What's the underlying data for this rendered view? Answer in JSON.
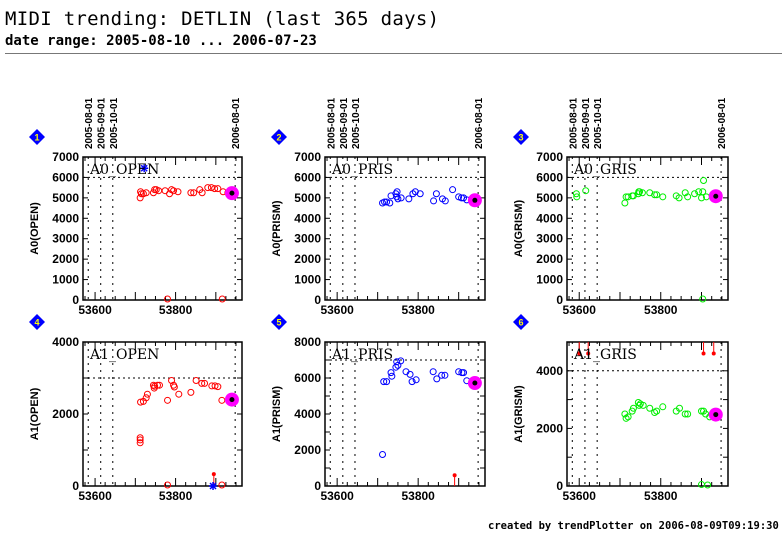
{
  "header": {
    "title": "MIDI trending: DETLIN (last 365 days)",
    "subtitle": "date range: 2005-08-10 ... 2006-07-23"
  },
  "footer": "created by trendPlotter on 2006-08-09T09:19:30",
  "date_markers": [
    {
      "label": "2005-08-01",
      "mjd": 53583
    },
    {
      "label": "2005-09-01",
      "mjd": 53614
    },
    {
      "label": "2005-10-01",
      "mjd": 53644
    },
    {
      "label": "2006-08-01",
      "mjd": 53948
    }
  ],
  "colors": {
    "OPEN": "#ff0000",
    "PRISM": "#0000ff",
    "GRISM": "#00ee00",
    "highlight": "#ff00ff",
    "badge": "#0000ff"
  },
  "chart_data": [
    {
      "type": "scatter",
      "id": 1,
      "badge": "1",
      "panel_title": "A0_OPEN",
      "ylabel": "A0(OPEN)",
      "xlim": [
        53570,
        53965
      ],
      "ylim": [
        0,
        7000
      ],
      "xticks": [
        53600,
        53800
      ],
      "yticks": [
        0,
        1000,
        2000,
        3000,
        4000,
        5000,
        6000,
        7000
      ],
      "threshold": 6000,
      "color": "OPEN",
      "points": [
        [
          53712,
          5000
        ],
        [
          53713,
          5300
        ],
        [
          53715,
          5200
        ],
        [
          53720,
          5200
        ],
        [
          53727,
          5250
        ],
        [
          53745,
          5250
        ],
        [
          53748,
          5400
        ],
        [
          53752,
          5400
        ],
        [
          53758,
          5350
        ],
        [
          53774,
          5350
        ],
        [
          53785,
          5200
        ],
        [
          53790,
          5400
        ],
        [
          53795,
          5350
        ],
        [
          53806,
          5300
        ],
        [
          53838,
          5250
        ],
        [
          53845,
          5250
        ],
        [
          53860,
          5400
        ],
        [
          53866,
          5250
        ],
        [
          53880,
          5500
        ],
        [
          53889,
          5500
        ],
        [
          53897,
          5450
        ],
        [
          53905,
          5450
        ],
        [
          53918,
          5300
        ],
        [
          53930,
          5250
        ],
        [
          53780,
          0
        ],
        [
          53916,
          0
        ]
      ],
      "latest": [
        53940,
        5230
      ],
      "extra": [
        {
          "type": "star",
          "x": 53722,
          "y": 6450,
          "color": "#0000ff"
        }
      ]
    },
    {
      "type": "scatter",
      "id": 2,
      "badge": "2",
      "panel_title": "A0_PRIS",
      "ylabel": "A0(PRISM)",
      "xlim": [
        53570,
        53965
      ],
      "ylim": [
        0,
        7000
      ],
      "xticks": [
        53600,
        53800
      ],
      "yticks": [
        0,
        1000,
        2000,
        3000,
        4000,
        5000,
        6000,
        7000
      ],
      "threshold": 6000,
      "color": "PRISM",
      "points": [
        [
          53712,
          4750
        ],
        [
          53717,
          4800
        ],
        [
          53722,
          4800
        ],
        [
          53730,
          4750
        ],
        [
          53733,
          5100
        ],
        [
          53745,
          5200
        ],
        [
          53747,
          5050
        ],
        [
          53748,
          5300
        ],
        [
          53750,
          4950
        ],
        [
          53758,
          5000
        ],
        [
          53777,
          4950
        ],
        [
          53787,
          5200
        ],
        [
          53793,
          5300
        ],
        [
          53805,
          5200
        ],
        [
          53838,
          4850
        ],
        [
          53845,
          5200
        ],
        [
          53860,
          4950
        ],
        [
          53867,
          4850
        ],
        [
          53885,
          5400
        ],
        [
          53900,
          5050
        ],
        [
          53907,
          5000
        ],
        [
          53912,
          5000
        ],
        [
          53920,
          4900
        ]
      ],
      "latest": [
        53940,
        4880
      ],
      "extra": []
    },
    {
      "type": "scatter",
      "id": 3,
      "badge": "3",
      "panel_title": "A0_GRIS",
      "ylabel": "A0(GRISM)",
      "xlim": [
        53570,
        53965
      ],
      "ylim": [
        0,
        7000
      ],
      "xticks": [
        53600,
        53800
      ],
      "yticks": [
        0,
        1000,
        2000,
        3000,
        4000,
        5000,
        6000,
        7000
      ],
      "threshold": 6000,
      "color": "GRISM",
      "points": [
        [
          53593,
          5200
        ],
        [
          53594,
          5050
        ],
        [
          53616,
          5350
        ],
        [
          53712,
          4750
        ],
        [
          53715,
          5050
        ],
        [
          53720,
          5050
        ],
        [
          53730,
          5100
        ],
        [
          53733,
          5100
        ],
        [
          53745,
          5200
        ],
        [
          53746,
          5300
        ],
        [
          53748,
          5300
        ],
        [
          53755,
          5250
        ],
        [
          53773,
          5250
        ],
        [
          53785,
          5150
        ],
        [
          53790,
          5150
        ],
        [
          53805,
          5050
        ],
        [
          53838,
          5100
        ],
        [
          53845,
          5000
        ],
        [
          53860,
          5250
        ],
        [
          53866,
          5050
        ],
        [
          53883,
          5200
        ],
        [
          53893,
          5300
        ],
        [
          53900,
          5000
        ],
        [
          53903,
          5300
        ],
        [
          53905,
          5850
        ],
        [
          53912,
          5050
        ],
        [
          53903,
          0
        ]
      ],
      "latest": [
        53935,
        5080
      ],
      "extra": []
    },
    {
      "type": "scatter",
      "id": 4,
      "badge": "4",
      "panel_title": "A1_OPEN",
      "ylabel": "A1(OPEN)",
      "xlim": [
        53570,
        53965
      ],
      "ylim": [
        0,
        4000
      ],
      "xticks": [
        53600,
        53800
      ],
      "yticks": [
        0,
        1000,
        2000,
        3000,
        4000
      ],
      "ytick_labels": [
        0,
        2000,
        4000
      ],
      "threshold": 3000,
      "color": "OPEN",
      "points": [
        [
          53712,
          1200
        ],
        [
          53712,
          1280
        ],
        [
          53712,
          1340
        ],
        [
          53713,
          2330
        ],
        [
          53720,
          2350
        ],
        [
          53727,
          2450
        ],
        [
          53730,
          2550
        ],
        [
          53745,
          2800
        ],
        [
          53747,
          2720
        ],
        [
          53748,
          2770
        ],
        [
          53755,
          2800
        ],
        [
          53760,
          2800
        ],
        [
          53780,
          2380
        ],
        [
          53790,
          2930
        ],
        [
          53795,
          2800
        ],
        [
          53797,
          2750
        ],
        [
          53808,
          2550
        ],
        [
          53838,
          2600
        ],
        [
          53851,
          2930
        ],
        [
          53865,
          2850
        ],
        [
          53872,
          2850
        ],
        [
          53890,
          2780
        ],
        [
          53898,
          2780
        ],
        [
          53905,
          2760
        ],
        [
          53915,
          2380
        ],
        [
          53780,
          0
        ],
        [
          53915,
          0
        ]
      ],
      "latest": [
        53940,
        2400
      ],
      "extra": [
        {
          "type": "limit",
          "x": 53895,
          "y": 330,
          "color": "#ff0000"
        },
        {
          "type": "star",
          "x": 53893,
          "y": 0,
          "color": "#0000ff"
        }
      ]
    },
    {
      "type": "scatter",
      "id": 5,
      "badge": "5",
      "panel_title": "A1_PRIS",
      "ylabel": "A1(PRISM)",
      "xlim": [
        53570,
        53965
      ],
      "ylim": [
        0,
        8000
      ],
      "xticks": [
        53600,
        53800
      ],
      "yticks": [
        0,
        1000,
        2000,
        3000,
        4000,
        5000,
        6000,
        7000,
        8000
      ],
      "ytick_labels": [
        0,
        2000,
        4000,
        6000,
        8000
      ],
      "threshold": 7000,
      "color": "PRISM",
      "points": [
        [
          53712,
          1750
        ],
        [
          53715,
          5800
        ],
        [
          53722,
          5800
        ],
        [
          53733,
          6300
        ],
        [
          53735,
          6100
        ],
        [
          53745,
          6600
        ],
        [
          53747,
          6900
        ],
        [
          53750,
          6700
        ],
        [
          53757,
          6950
        ],
        [
          53770,
          6350
        ],
        [
          53780,
          6200
        ],
        [
          53785,
          5800
        ],
        [
          53795,
          5900
        ],
        [
          53837,
          6350
        ],
        [
          53846,
          5950
        ],
        [
          53858,
          6150
        ],
        [
          53866,
          6150
        ],
        [
          53900,
          6350
        ],
        [
          53908,
          6300
        ],
        [
          53912,
          6300
        ],
        [
          53920,
          5850
        ]
      ],
      "latest": [
        53940,
        5720
      ],
      "extra": [
        {
          "type": "limit",
          "x": 53890,
          "y": 600,
          "color": "#ff0000"
        }
      ]
    },
    {
      "type": "scatter",
      "id": 6,
      "badge": "6",
      "panel_title": "A1_GRIS",
      "ylabel": "A1(GRISM)",
      "xlim": [
        53570,
        53965
      ],
      "ylim": [
        0,
        5000
      ],
      "xticks": [
        53600,
        53800
      ],
      "yticks": [
        0,
        1000,
        2000,
        3000,
        4000,
        5000
      ],
      "ytick_labels": [
        0,
        2000,
        4000
      ],
      "threshold": 4000,
      "color": "GRISM",
      "points": [
        [
          53712,
          2500
        ],
        [
          53715,
          2350
        ],
        [
          53720,
          2400
        ],
        [
          53730,
          2600
        ],
        [
          53733,
          2700
        ],
        [
          53745,
          2900
        ],
        [
          53747,
          2800
        ],
        [
          53750,
          2850
        ],
        [
          53757,
          2800
        ],
        [
          53773,
          2700
        ],
        [
          53785,
          2550
        ],
        [
          53790,
          2600
        ],
        [
          53805,
          2750
        ],
        [
          53838,
          2600
        ],
        [
          53846,
          2700
        ],
        [
          53860,
          2500
        ],
        [
          53866,
          2500
        ],
        [
          53900,
          2600
        ],
        [
          53905,
          2600
        ],
        [
          53910,
          2500
        ],
        [
          53920,
          2400
        ],
        [
          53900,
          50
        ],
        [
          53915,
          0
        ]
      ],
      "latest": [
        53935,
        2480
      ],
      "extra": [
        {
          "type": "uplim",
          "x": 53600,
          "y": 4600,
          "color": "#ff0000"
        },
        {
          "type": "uplim",
          "x": 53622,
          "y": 4600,
          "color": "#ff0000"
        },
        {
          "type": "uplim",
          "x": 53905,
          "y": 4600,
          "color": "#ff0000"
        },
        {
          "type": "uplim",
          "x": 53930,
          "y": 4600,
          "color": "#ff0000"
        }
      ]
    }
  ]
}
